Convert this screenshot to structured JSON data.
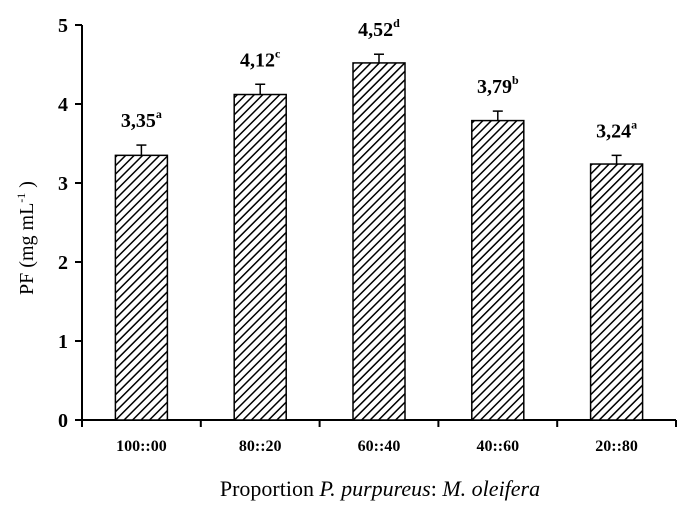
{
  "chart_data": {
    "type": "bar",
    "categories": [
      "100::00",
      "80::20",
      "60::40",
      "40::60",
      "20::80"
    ],
    "values": [
      3.35,
      4.12,
      4.52,
      3.79,
      3.24
    ],
    "error": [
      0.13,
      0.13,
      0.11,
      0.12,
      0.11
    ],
    "value_labels": [
      "3,35",
      "4,12",
      "4,52",
      "3,79",
      "3,24"
    ],
    "letters": [
      "a",
      "c",
      "d",
      "b",
      "a"
    ],
    "ylim": [
      0,
      5
    ],
    "yticks": [
      "0",
      "1",
      "2",
      "3",
      "4",
      "5"
    ],
    "ylabel": {
      "main": "PF (mg mL",
      "sup": "-1",
      "close": " )"
    },
    "xlabel": {
      "p1": "Proportion ",
      "p2": "P. purpureus",
      "p3": ": ",
      "p4": "M. oleifera"
    },
    "bar_fill": "hatched-diagonal",
    "grid": false
  }
}
